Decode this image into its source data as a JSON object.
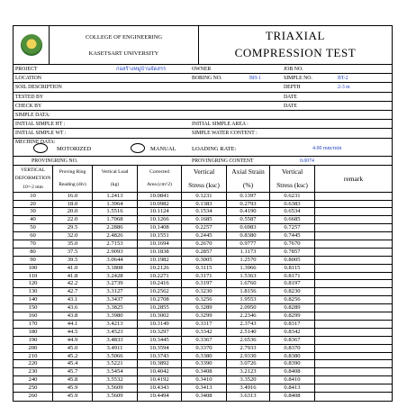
{
  "header": {
    "college": "COLLEGE OF ENGINEERING",
    "university": "KASETSART UNIVERSITY",
    "title_line1": "TRIAXIAL",
    "title_line2": "COMPRESSION TEST"
  },
  "info": {
    "project_label": "PROJECT",
    "project_value": "ก่อสร้างหมู่บ้านจัดสรร",
    "owner_label": "OWNER",
    "job_label": "JOB NO.",
    "location_label": "LOCATION",
    "boring_label": "BORING NO.",
    "boring_value": "BH-1",
    "sample_label": "SIMPLE NO.",
    "sample_value": "BT-2",
    "soil_label": "SOIL DESCRIPTION",
    "depth_label": "DEPTH",
    "depth_value": "2-3 m",
    "tested_label": "TESTED BY",
    "date_label_1": "DATE",
    "check_label": "CHECK BY",
    "date_label_2": "DATE",
    "simple_data_label": "SIMPLE DATA:",
    "initial_ht_label": "INITIAL SIMPLE HT :",
    "initial_area_label": "INITIAL SIMPLE AREA :",
    "initial_wt_label": "INITIAL SIMPLE WT :",
    "water_label": "SIMPLE WATER CONTENT :"
  },
  "machine": {
    "label": "MECHINE DATA:",
    "motorized": "MOTORIZED",
    "manual": "MANUAL",
    "loading_label": "LOADING RATE:",
    "loading_value": "4.00 mm/min",
    "proving_no_label": "PROVINGRING NO.",
    "proving_content_label": "PROVINGRING CONTENT",
    "proving_content_value": "0.0074"
  },
  "columns": {
    "col1": [
      "VERTICAL",
      "DEFORMETION",
      "10^-2 mm"
    ],
    "col2": [
      "Proving Ring",
      "Reading (div)"
    ],
    "col3": [
      "Vertical Load",
      "(kg)"
    ],
    "col4": [
      "Corrected",
      "Area (cm^2)"
    ],
    "col5": [
      "Vertical",
      "Stress (ksc)"
    ],
    "col6": [
      "Axial Strain",
      "(%)"
    ],
    "col7": [
      "Vertical",
      "Stress (ksc)"
    ],
    "col8": [
      "remark"
    ]
  },
  "rows": [
    [
      "10",
      "16.0",
      "1.2413",
      "10.0841",
      "0.1231",
      "0.1397",
      "0.6231"
    ],
    [
      "20",
      "18.0",
      "1.3964",
      "10.0982",
      "0.1383",
      "0.2793",
      "0.6383"
    ],
    [
      "30",
      "20.0",
      "1.5516",
      "10.1124",
      "0.1534",
      "0.4190",
      "0.6534"
    ],
    [
      "40",
      "22.0",
      "1.7068",
      "10.1266",
      "0.1685",
      "0.5587",
      "0.6685"
    ],
    [
      "50",
      "29.5",
      "2.2886",
      "10.1408",
      "0.2257",
      "0.6983",
      "0.7257"
    ],
    [
      "60",
      "32.0",
      "2.4826",
      "10.1551",
      "0.2445",
      "0.8380",
      "0.7445"
    ],
    [
      "70",
      "35.0",
      "2.7153",
      "10.1694",
      "0.2670",
      "0.9777",
      "0.7670"
    ],
    [
      "80",
      "37.5",
      "2.9093",
      "10.1838",
      "0.2857",
      "1.1173",
      "0.7857"
    ],
    [
      "90",
      "39.5",
      "3.0644",
      "10.1982",
      "0.3005",
      "1.2570",
      "0.8005"
    ],
    [
      "100",
      "41.0",
      "3.1808",
      "10.2126",
      "0.3115",
      "1.3966",
      "0.8115"
    ],
    [
      "110",
      "41.8",
      "3.2428",
      "10.2271",
      "0.3171",
      "1.5363",
      "0.8171"
    ],
    [
      "120",
      "42.2",
      "3.2739",
      "10.2416",
      "0.3197",
      "1.6760",
      "0.8197"
    ],
    [
      "130",
      "42.7",
      "3.3127",
      "10.2562",
      "0.3230",
      "1.8156",
      "0.8230"
    ],
    [
      "140",
      "43.1",
      "3.3437",
      "10.2708",
      "0.3256",
      "1.9553",
      "0.8256"
    ],
    [
      "150",
      "43.6",
      "3.3825",
      "10.2855",
      "0.3289",
      "2.0950",
      "0.8289"
    ],
    [
      "160",
      "43.8",
      "3.3980",
      "10.3002",
      "0.3299",
      "2.2346",
      "0.8299"
    ],
    [
      "170",
      "44.1",
      "3.4213",
      "10.3149",
      "0.3317",
      "2.3743",
      "0.8317"
    ],
    [
      "180",
      "44.5",
      "3.4523",
      "10.3297",
      "0.3342",
      "2.5140",
      "0.8342"
    ],
    [
      "190",
      "44.9",
      "3.4833",
      "10.3445",
      "0.3367",
      "2.6536",
      "0.8367"
    ],
    [
      "200",
      "45.0",
      "3.4911",
      "10.3594",
      "0.3370",
      "2.7933",
      "0.8370"
    ],
    [
      "210",
      "45.2",
      "3.5066",
      "10.3743",
      "0.3380",
      "2.9330",
      "0.8380"
    ],
    [
      "220",
      "45.4",
      "3.5221",
      "10.3892",
      "0.3390",
      "3.0726",
      "0.8390"
    ],
    [
      "230",
      "45.7",
      "3.5454",
      "10.4042",
      "0.3408",
      "3.2123",
      "0.8408"
    ],
    [
      "240",
      "45.8",
      "3.5532",
      "10.4192",
      "0.3410",
      "3.3520",
      "0.8410"
    ],
    [
      "250",
      "45.9",
      "3.5609",
      "10.4343",
      "0.3413",
      "3.4916",
      "0.8413"
    ],
    [
      "260",
      "45.9",
      "3.5609",
      "10.4494",
      "0.3408",
      "3.6313",
      "0.8408"
    ]
  ]
}
